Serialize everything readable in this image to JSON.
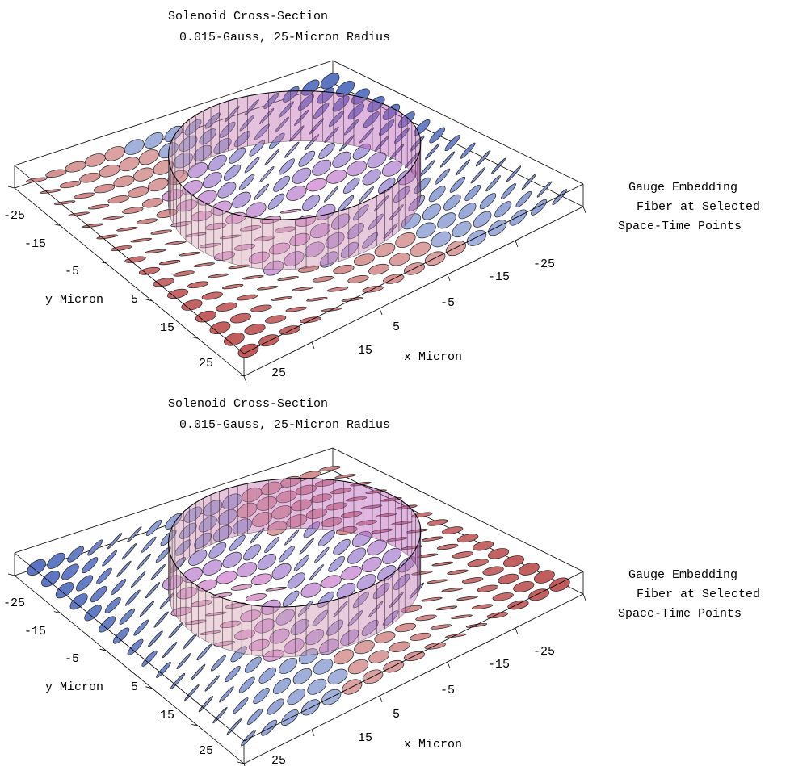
{
  "panels": [
    {
      "title": [
        "Solenoid Cross-Section",
        "0.015-Gauss, 25-Micron Radius"
      ],
      "x_label": "x Micron",
      "y_label": "y Micron",
      "x_ticks": [
        "25",
        "15",
        "5",
        "-5",
        "-15",
        "-25"
      ],
      "y_ticks": [
        "-25",
        "-15",
        "-5",
        "5",
        "15",
        "25"
      ],
      "legend": [
        "Gauge Embedding",
        "Fiber at Selected",
        "Space-Time Points"
      ]
    },
    {
      "title": [
        "Solenoid Cross-Section",
        "0.015-Gauss, 25-Micron Radius"
      ],
      "x_label": "x Micron",
      "y_label": "y Micron",
      "x_ticks": [
        "25",
        "15",
        "5",
        "-5",
        "-15",
        "-25"
      ],
      "y_ticks": [
        "-25",
        "-15",
        "-5",
        "5",
        "15",
        "25"
      ],
      "legend": [
        "Gauge Embedding",
        "Fiber at Selected",
        "Space-Time Points"
      ]
    }
  ]
}
